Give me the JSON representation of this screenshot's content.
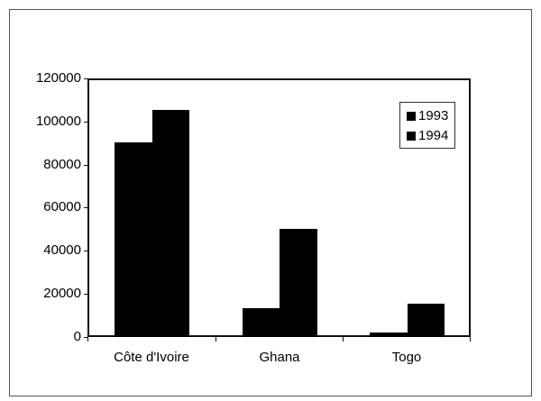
{
  "chart_data": {
    "type": "bar",
    "title": "",
    "xlabel": "",
    "ylabel": "",
    "categories": [
      "Côte d'Ivoire",
      "Ghana",
      "Togo"
    ],
    "series": [
      {
        "name": "1993",
        "values": [
          90400,
          13400,
          2200
        ],
        "color": "#000000"
      },
      {
        "name": "1994",
        "values": [
          105400,
          50200,
          15500
        ],
        "color": "#000000"
      }
    ],
    "ylim": [
      0,
      120000
    ],
    "yticks": [
      "0",
      "20000",
      "40000",
      "60000",
      "80000",
      "100000",
      "120000"
    ],
    "grid": false,
    "legend_position": "top-right inside plot"
  },
  "legend": {
    "items": [
      {
        "label": "1993"
      },
      {
        "label": "1994"
      }
    ]
  },
  "axis": {
    "y_labels": [
      "120000",
      "100000",
      "80000",
      "60000",
      "40000",
      "20000",
      "0"
    ]
  },
  "x_labels": [
    "Côte d'Ivoire",
    "Ghana",
    "Togo"
  ]
}
